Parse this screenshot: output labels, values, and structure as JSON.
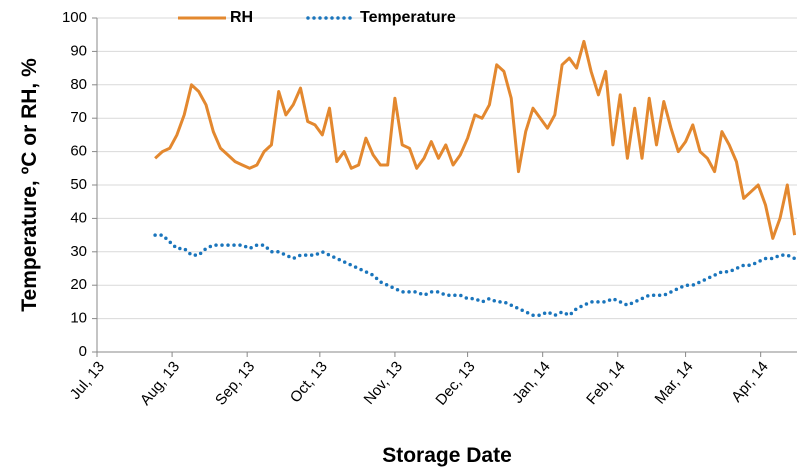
{
  "chart_data": {
    "type": "line",
    "xlabel": "Storage Date",
    "ylabel": "Temperature, ºC or RH, %",
    "x": [
      24,
      27,
      30,
      33,
      36,
      39,
      42,
      45,
      48,
      51,
      54,
      57,
      60,
      63,
      66,
      69,
      72,
      75,
      78,
      81,
      84,
      87,
      90,
      93,
      96,
      99,
      102,
      105,
      108,
      111,
      114,
      117,
      120,
      123,
      126,
      129,
      132,
      135,
      138,
      141,
      144,
      147,
      150,
      153,
      156,
      159,
      162,
      165,
      168,
      171,
      174,
      177,
      180,
      183,
      186,
      189,
      192,
      195,
      198,
      201,
      204,
      207,
      210,
      213,
      216,
      219,
      222,
      225,
      228,
      231,
      234,
      237,
      240,
      243,
      246,
      249,
      252,
      255,
      258,
      261,
      264,
      267,
      270,
      273,
      276,
      279,
      282,
      285,
      288
    ],
    "series": [
      {
        "name": "RH",
        "color": "#e3882f",
        "style": "solid",
        "values": [
          58,
          60,
          61,
          65,
          71,
          80,
          78,
          74,
          66,
          61,
          59,
          57,
          56,
          55,
          56,
          60,
          62,
          78,
          71,
          74,
          79,
          69,
          68,
          65,
          73,
          57,
          60,
          55,
          56,
          64,
          59,
          56,
          56,
          76,
          62,
          61,
          55,
          58,
          63,
          58,
          62,
          56,
          59,
          64,
          71,
          70,
          74,
          86,
          84,
          76,
          54,
          66,
          73,
          70,
          67,
          71,
          86,
          88,
          85,
          93,
          84,
          77,
          84,
          62,
          77,
          58,
          73,
          58,
          76,
          62,
          75,
          67,
          60,
          63,
          68,
          60,
          58,
          54,
          66,
          62,
          57,
          46,
          48,
          50,
          44,
          34,
          40,
          50,
          35
        ]
      },
      {
        "name": "Temperature",
        "color": "#1a75bc",
        "style": "dotted",
        "values": [
          35,
          35,
          33,
          31,
          31,
          29,
          29,
          31,
          32,
          32,
          32,
          32,
          32,
          31,
          32,
          32,
          30,
          30,
          29,
          28,
          29,
          29,
          29,
          30,
          29,
          28,
          27,
          26,
          25,
          24,
          23,
          21,
          20,
          19,
          18,
          18,
          18,
          17,
          18,
          18,
          17,
          17,
          17,
          16,
          16,
          15,
          16,
          15,
          15,
          14,
          13,
          12,
          11,
          11,
          12,
          11,
          12,
          11,
          13,
          14,
          15,
          15,
          15,
          16,
          15,
          14,
          15,
          16,
          17,
          17,
          17,
          18,
          19,
          20,
          20,
          21,
          22,
          23,
          24,
          24,
          25,
          26,
          26,
          27,
          28,
          28,
          29,
          29,
          28
        ]
      }
    ],
    "xlim": [
      0,
      289
    ],
    "xticks": [
      {
        "value": 0,
        "label": "Jul, 13"
      },
      {
        "value": 31,
        "label": "Aug, 13"
      },
      {
        "value": 62,
        "label": "Sep, 13"
      },
      {
        "value": 92,
        "label": "Oct, 13"
      },
      {
        "value": 123,
        "label": "Nov, 13"
      },
      {
        "value": 153,
        "label": "Dec, 13"
      },
      {
        "value": 184,
        "label": "Jan, 14"
      },
      {
        "value": 215,
        "label": "Feb, 14"
      },
      {
        "value": 243,
        "label": "Mar, 14"
      },
      {
        "value": 274,
        "label": "Apr, 14"
      }
    ],
    "ylim": [
      0,
      100
    ],
    "yticks": [
      0,
      10,
      20,
      30,
      40,
      50,
      60,
      70,
      80,
      90,
      100
    ],
    "grid": true,
    "legend": "top"
  }
}
